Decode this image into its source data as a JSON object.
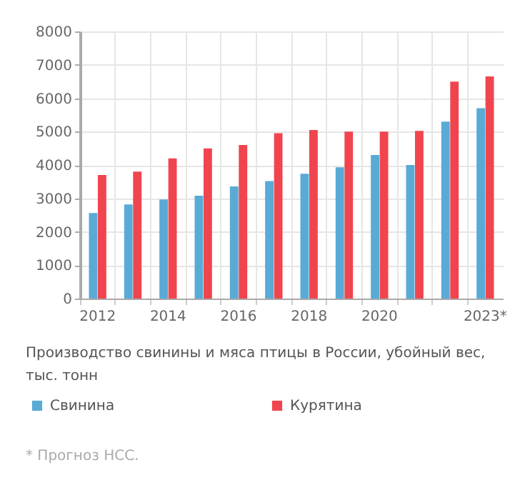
{
  "chart_data": {
    "type": "bar",
    "title": "Производство свинины и мяса птицы в России, убойный вес, тыс. тонн",
    "annotations": [
      "* Прогноз НСС."
    ],
    "categories": [
      "2012",
      null,
      "2014",
      null,
      "2016",
      null,
      "2018",
      null,
      "2020",
      null,
      null,
      "2023*"
    ],
    "series": [
      {
        "name": "Свинина",
        "color": "#5aaad6",
        "values": [
          2560,
          2820,
          2970,
          3080,
          3360,
          3520,
          3740,
          3930,
          4300,
          4000,
          5300,
          5700
        ]
      },
      {
        "name": "Курятина",
        "color": "#f0454f",
        "values": [
          3700,
          3800,
          4200,
          4500,
          4600,
          4950,
          5050,
          5000,
          5000,
          5020,
          6500,
          6650
        ]
      }
    ],
    "ylim": [
      0,
      8000
    ],
    "yticks": [
      0,
      1000,
      2000,
      3000,
      4000,
      5000,
      6000,
      7000,
      8000
    ],
    "grid": true,
    "legend": "bottom"
  }
}
